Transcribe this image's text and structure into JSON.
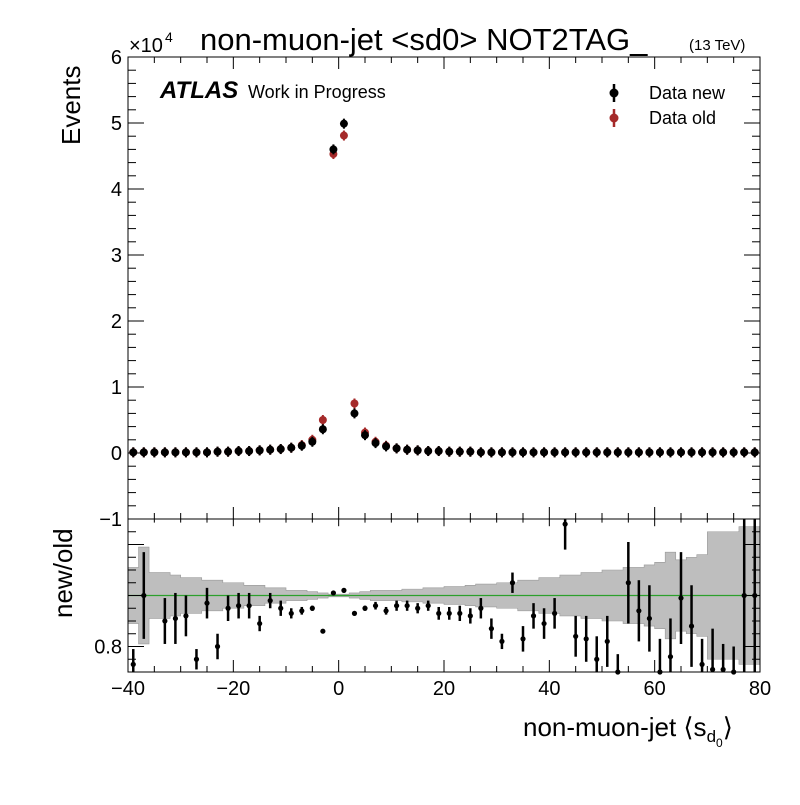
{
  "chart_data": [
    {
      "type": "scatter",
      "title": "non-muon-jet <sd0> NOT2TAG_",
      "subtitle": "(13 TeV)",
      "atlas_label": "ATLAS",
      "atlas_sub": "Work in Progress",
      "ylabel": "Events",
      "y_multiplier": "×10",
      "y_multiplier_exp": "4",
      "xlim": [
        -40,
        80
      ],
      "ylim": [
        -1,
        6
      ],
      "y_scale": 10000,
      "x_ticks": [
        -40,
        -20,
        0,
        20,
        40,
        60,
        80
      ],
      "y_ticks": [
        -1,
        0,
        1,
        2,
        3,
        4,
        5,
        6
      ],
      "legend_position": "top-right",
      "series": [
        {
          "name": "Data new",
          "color": "#000000",
          "x": [
            -39,
            -37,
            -35,
            -33,
            -31,
            -29,
            -27,
            -25,
            -23,
            -21,
            -19,
            -17,
            -15,
            -13,
            -11,
            -9,
            -7,
            -5,
            -3,
            -1,
            1,
            3,
            5,
            7,
            9,
            11,
            13,
            15,
            17,
            19,
            21,
            23,
            25,
            27,
            29,
            31,
            33,
            35,
            37,
            39,
            41,
            43,
            45,
            47,
            49,
            51,
            53,
            55,
            57,
            59,
            61,
            63,
            65,
            67,
            69,
            71,
            73,
            75,
            77,
            79
          ],
          "y": [
            0.01,
            0.01,
            0.01,
            0.01,
            0.01,
            0.01,
            0.01,
            0.01,
            0.02,
            0.02,
            0.03,
            0.03,
            0.04,
            0.05,
            0.06,
            0.08,
            0.11,
            0.17,
            0.36,
            4.6,
            4.99,
            0.6,
            0.27,
            0.15,
            0.1,
            0.07,
            0.05,
            0.04,
            0.03,
            0.03,
            0.02,
            0.02,
            0.02,
            0.01,
            0.01,
            0.01,
            0.01,
            0.01,
            0.01,
            0.01,
            0.01,
            0.01,
            0.01,
            0.01,
            0.01,
            0.01,
            0.01,
            0.01,
            0.01,
            0.01,
            0.01,
            0.01,
            0.01,
            0.01,
            0.01,
            0.01,
            0.01,
            0.01,
            0.01,
            0.01
          ]
        },
        {
          "name": "Data old",
          "color": "#a52a2a",
          "x": [
            -39,
            -37,
            -35,
            -33,
            -31,
            -29,
            -27,
            -25,
            -23,
            -21,
            -19,
            -17,
            -15,
            -13,
            -11,
            -9,
            -7,
            -5,
            -3,
            -1,
            1,
            3,
            5,
            7,
            9,
            11,
            13,
            15,
            17,
            19,
            21,
            23,
            25,
            27,
            29,
            31,
            33,
            35,
            37,
            39,
            41,
            43,
            45,
            47,
            49,
            51,
            53,
            55,
            57,
            59,
            61,
            63,
            65,
            67,
            69,
            71,
            73,
            75,
            77,
            79
          ],
          "y": [
            0.01,
            0.01,
            0.01,
            0.01,
            0.01,
            0.01,
            0.01,
            0.01,
            0.02,
            0.02,
            0.03,
            0.03,
            0.04,
            0.05,
            0.06,
            0.08,
            0.12,
            0.2,
            0.5,
            4.53,
            4.81,
            0.75,
            0.31,
            0.17,
            0.11,
            0.07,
            0.05,
            0.04,
            0.03,
            0.03,
            0.02,
            0.02,
            0.02,
            0.01,
            0.01,
            0.01,
            0.01,
            0.01,
            0.01,
            0.01,
            0.01,
            0.01,
            0.01,
            0.01,
            0.01,
            0.01,
            0.01,
            0.01,
            0.01,
            0.01,
            0.01,
            0.01,
            0.01,
            0.01,
            0.01,
            0.01,
            0.01,
            0.01,
            0.01,
            0.01
          ]
        }
      ]
    },
    {
      "type": "scatter",
      "ylabel": "new/old",
      "xlabel": "non-muon-jet ⟨s",
      "xlabel_sub": "d",
      "xlabel_subsub": "0",
      "xlabel_end": "⟩",
      "xlim": [
        -40,
        80
      ],
      "ylim": [
        0.7,
        1.3
      ],
      "x_ticks": [
        -40,
        -20,
        0,
        20,
        40,
        60,
        80
      ],
      "y_ticks": [
        0.8
      ],
      "reference_line": 1.0,
      "reference_color": "#2ca02c",
      "band_color": "#bebebe",
      "band_edges": [
        -40,
        -38,
        -36,
        -34,
        -32,
        -30,
        -28,
        -26,
        -24,
        -22,
        -20,
        -18,
        -16,
        -14,
        -12,
        -10,
        -8,
        -6,
        -4,
        -2,
        0,
        2,
        4,
        6,
        8,
        10,
        12,
        14,
        16,
        18,
        20,
        22,
        24,
        26,
        28,
        30,
        32,
        34,
        36,
        38,
        40,
        42,
        44,
        46,
        48,
        50,
        52,
        54,
        56,
        58,
        60,
        62,
        64,
        66,
        68,
        70,
        72,
        74,
        76,
        78,
        80
      ],
      "band_halfwidth": [
        0.11,
        0.19,
        0.09,
        0.09,
        0.08,
        0.07,
        0.07,
        0.06,
        0.06,
        0.05,
        0.05,
        0.04,
        0.04,
        0.03,
        0.03,
        0.02,
        0.02,
        0.015,
        0.01,
        0.005,
        0.005,
        0.01,
        0.015,
        0.02,
        0.02,
        0.02,
        0.025,
        0.025,
        0.03,
        0.03,
        0.035,
        0.035,
        0.04,
        0.045,
        0.045,
        0.05,
        0.05,
        0.06,
        0.06,
        0.07,
        0.07,
        0.08,
        0.08,
        0.09,
        0.09,
        0.1,
        0.1,
        0.11,
        0.11,
        0.12,
        0.13,
        0.17,
        0.14,
        0.15,
        0.16,
        0.25,
        0.25,
        0.25,
        0.27,
        0.27
      ],
      "series": [
        {
          "name": "ratio",
          "color": "#000000",
          "x": [
            -39,
            -37,
            -35,
            -33,
            -31,
            -29,
            -27,
            -25,
            -23,
            -21,
            -19,
            -17,
            -15,
            -13,
            -11,
            -9,
            -7,
            -5,
            -3,
            -1,
            1,
            3,
            5,
            7,
            9,
            11,
            13,
            15,
            17,
            19,
            21,
            23,
            25,
            27,
            29,
            31,
            33,
            35,
            37,
            39,
            41,
            43,
            45,
            47,
            49,
            51,
            53,
            55,
            57,
            59,
            61,
            63,
            65,
            67,
            69,
            71,
            73,
            75,
            77,
            79
          ],
          "y": [
            0.73,
            1.0,
            null,
            0.9,
            0.91,
            0.92,
            0.75,
            0.97,
            0.8,
            0.95,
            0.96,
            0.96,
            0.89,
            0.98,
            0.95,
            0.93,
            0.94,
            0.95,
            0.86,
            1.01,
            1.02,
            0.93,
            0.95,
            0.96,
            0.94,
            0.96,
            0.96,
            0.95,
            0.96,
            0.93,
            0.93,
            0.93,
            0.92,
            0.95,
            0.87,
            0.82,
            1.05,
            0.83,
            0.92,
            0.89,
            0.93,
            1.28,
            0.84,
            0.83,
            0.75,
            0.82,
            0.7,
            1.05,
            0.94,
            0.91,
            0.7,
            0.76,
            0.99,
            0.88,
            0.73,
            0.71,
            0.71,
            0.7,
            1.0,
            1.0
          ],
          "yerr": [
            0.06,
            0.17,
            0,
            0.09,
            0.1,
            0.08,
            0.04,
            0.06,
            0.05,
            0.05,
            0.05,
            0.05,
            0.03,
            0.03,
            0.03,
            0.02,
            0.015,
            0.01,
            0.005,
            0.005,
            0.005,
            0.005,
            0.01,
            0.015,
            0.015,
            0.02,
            0.02,
            0.02,
            0.02,
            0.025,
            0.025,
            0.03,
            0.03,
            0.04,
            0.04,
            0.03,
            0.04,
            0.05,
            0.05,
            0.06,
            0.06,
            0.1,
            0.08,
            0.09,
            0.09,
            0.1,
            0.07,
            0.16,
            0.12,
            0.13,
            0.13,
            0.15,
            0.18,
            0.16,
            0.1,
            0.16,
            0.1,
            0.1,
            0.3,
            0.3
          ]
        }
      ]
    }
  ]
}
